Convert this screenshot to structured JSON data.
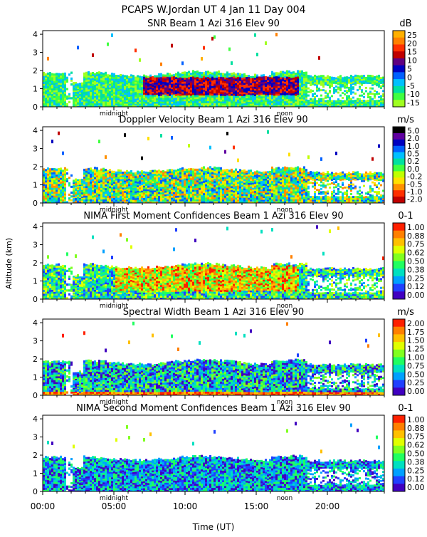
{
  "header": {
    "title_line": "PCAPS W.Jordan UT    4 Jan 11 Day 004"
  },
  "shared_axes": {
    "ylabel": "Altitude (km)",
    "xlabel": "Time (UT)",
    "x_range_hours": [
      0,
      24
    ],
    "y_range_km": [
      0,
      4.2
    ],
    "y_ticks": [
      "0",
      "1",
      "2",
      "3",
      "4"
    ],
    "x_ticks": [
      "00:00",
      "05:00",
      "10:00",
      "15:00",
      "20:00"
    ],
    "x_tick_hours": [
      0,
      5,
      10,
      15,
      20
    ],
    "markers": {
      "midnight": "midnight",
      "noon": "noon"
    },
    "marker_hours": {
      "midnight": 5,
      "noon": 17
    }
  },
  "chart_data": [
    {
      "type": "heatmap",
      "title": "SNR Beam 1 Azi 316 Elev 90",
      "unit": "dB",
      "colorbar_labels": [
        "25",
        "20",
        "15",
        "10",
        "5",
        "0",
        "-5",
        "-10",
        "-15"
      ],
      "colors": [
        "#ffb000",
        "#ff8000",
        "#ff3000",
        "#c00000",
        "#600080",
        "#0000c0",
        "#0060ff",
        "#00c0ff",
        "#00e0a0",
        "#40ff40",
        "#a0ff20"
      ],
      "x_hours": [
        0,
        24
      ],
      "y_km": [
        0,
        4.2
      ]
    },
    {
      "type": "heatmap",
      "title": "Doppler Velocity Beam 1 Azi 316 Elev 90",
      "unit": "m/s",
      "colorbar_labels": [
        "5.0",
        "2.0",
        "1.0",
        "0.5",
        "0.2",
        "0.0",
        "-0.2",
        "-0.5",
        "-1.0",
        "-2.0"
      ],
      "colors": [
        "#000000",
        "#6000a0",
        "#0000c0",
        "#0060ff",
        "#00c0ff",
        "#00e0a0",
        "#40ff40",
        "#c0ff00",
        "#ffe000",
        "#ff9000",
        "#ff3000",
        "#c00000"
      ],
      "x_hours": [
        0,
        24
      ],
      "y_km": [
        0,
        4.2
      ]
    },
    {
      "type": "heatmap",
      "title": "NIMA First Moment Confidences Beam 1 Azi 316 Elev 90",
      "unit": "0-1",
      "colorbar_labels": [
        "1.00",
        "0.88",
        "0.75",
        "0.62",
        "0.50",
        "0.38",
        "0.25",
        "0.12",
        "0.00"
      ],
      "colors": [
        "#ff2000",
        "#ff8000",
        "#ffc000",
        "#e0ff00",
        "#80ff20",
        "#20ff60",
        "#00e0c0",
        "#00a0ff",
        "#2040ff",
        "#4000c0"
      ],
      "x_hours": [
        0,
        24
      ],
      "y_km": [
        0,
        4.2
      ]
    },
    {
      "type": "heatmap",
      "title": "Spectral Width Beam 1 Azi 316 Elev 90",
      "unit": "m/s",
      "colorbar_labels": [
        "2.00",
        "1.75",
        "1.50",
        "1.25",
        "1.00",
        "0.75",
        "0.50",
        "0.25",
        "0.00"
      ],
      "colors": [
        "#ff2000",
        "#ff8000",
        "#ffc000",
        "#e0ff00",
        "#80ff20",
        "#20ff60",
        "#00e0c0",
        "#00a0ff",
        "#2040ff",
        "#4000c0"
      ],
      "x_hours": [
        0,
        24
      ],
      "y_km": [
        0,
        4.2
      ]
    },
    {
      "type": "heatmap",
      "title": "NIMA Second Moment Confidences Beam 1 Azi 316 Elev 90",
      "unit": "0-1",
      "colorbar_labels": [
        "1.00",
        "0.88",
        "0.75",
        "0.62",
        "0.50",
        "0.38",
        "0.25",
        "0.12",
        "0.00"
      ],
      "colors": [
        "#ff2000",
        "#ff8000",
        "#ffc000",
        "#e0ff00",
        "#80ff20",
        "#20ff60",
        "#00e0c0",
        "#00a0ff",
        "#2040ff",
        "#4000c0"
      ],
      "x_hours": [
        0,
        24
      ],
      "y_km": [
        0,
        4.2
      ]
    }
  ]
}
